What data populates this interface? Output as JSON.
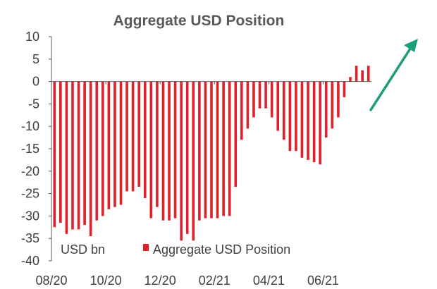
{
  "chart_data": {
    "type": "bar",
    "title": "Aggregate USD Position",
    "unit_label": "USD bn",
    "series": [
      {
        "name": "Aggregate USD Position",
        "color": "#E0202B",
        "values": [
          -32.5,
          -31.5,
          -34,
          -33,
          -33,
          -32,
          -34.5,
          -31,
          -30,
          -28.5,
          -28,
          -27.5,
          -24.5,
          -24.5,
          -23.5,
          -26,
          -30.5,
          -28,
          -31,
          -31,
          -30.5,
          -35.5,
          -34,
          -35.5,
          -31,
          -30.5,
          -30.5,
          -30.5,
          -30,
          -30,
          -23.5,
          -13,
          -10.5,
          -8,
          -6,
          -6,
          -8,
          -11,
          -13,
          -15.5,
          -15.5,
          -17,
          -17.5,
          -18,
          -18.5,
          -12.5,
          -10.5,
          -8,
          -3.5,
          1,
          3.5,
          2.5,
          3.5
        ]
      }
    ],
    "x_tick_labels": [
      "08/20",
      "10/20",
      "12/20",
      "02/21",
      "04/21",
      "06/21"
    ],
    "x_tick_indices": [
      0,
      9,
      18,
      27,
      36,
      45
    ],
    "ylim": [
      -40,
      10
    ],
    "y_ticks": [
      10,
      5,
      0,
      -5,
      -10,
      -15,
      -20,
      -25,
      -30,
      -35,
      -40
    ],
    "y_tick_labels": [
      "10",
      "5",
      "0",
      "-5",
      "-10",
      "-15",
      "-20",
      "-25",
      "-30",
      "-35",
      "-40"
    ],
    "grid": false,
    "legend_position": "bottom-inside",
    "annotation": {
      "type": "arrow",
      "color": "#1E9D7C",
      "meaning": "upward trend"
    }
  }
}
